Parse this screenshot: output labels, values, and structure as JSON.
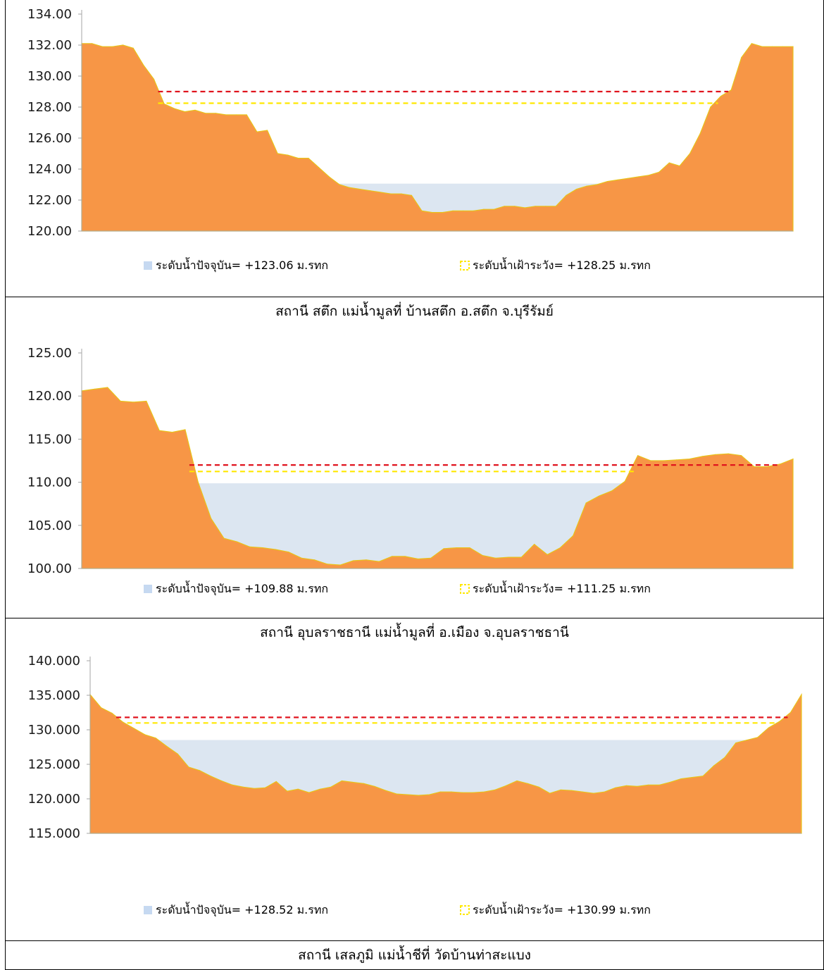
{
  "colors": {
    "terrain": "#F79646",
    "terrain_edge": "#E8C21A",
    "water": "#DCE6F1",
    "water_legend": "#C6D9F1",
    "warning_line": "#FFE800",
    "danger_line": "#E0141E",
    "axis": "#A6A6A6"
  },
  "chart_data": [
    {
      "type": "area",
      "station_caption": "สถานี สตึก แม่น้ำมูลที่ บ้านสตึก อ.สตึก จ.บุรีรัมย์",
      "ylim": [
        120,
        134
      ],
      "yticks": [
        "120.00",
        "122.00",
        "124.00",
        "126.00",
        "128.00",
        "130.00",
        "132.00",
        "134.00"
      ],
      "ytick_values": [
        120,
        122,
        124,
        126,
        128,
        130,
        132,
        134
      ],
      "series": [
        {
          "name": "",
          "values": [
            132.1,
            132.1,
            131.9,
            131.9,
            132.0,
            131.8,
            130.7,
            129.8,
            128.2,
            127.9,
            127.7,
            127.8,
            127.6,
            127.6,
            127.5,
            127.5,
            127.5,
            126.4,
            126.5,
            125.0,
            124.9,
            124.7,
            124.7,
            124.1,
            123.5,
            123.0,
            122.8,
            122.7,
            122.6,
            122.5,
            122.4,
            122.4,
            122.3,
            121.3,
            121.2,
            121.2,
            121.3,
            121.3,
            121.3,
            121.4,
            121.4,
            121.6,
            121.6,
            121.5,
            121.6,
            121.6,
            121.6,
            122.3,
            122.7,
            122.9,
            123.0,
            123.2,
            123.3,
            123.4,
            123.5,
            123.6,
            123.8,
            124.4,
            124.2,
            125.0,
            126.3,
            128.0,
            128.7,
            129.1,
            131.2,
            132.1,
            131.9,
            131.9,
            131.9,
            131.9
          ]
        }
      ],
      "current_level": 123.06,
      "warning_level": 128.25,
      "danger_level": 129.0,
      "legend": [
        {
          "label": "ระดับน้ำปัจจุบัน=  +123.06 ม.รทก",
          "kind": "water"
        },
        {
          "label": "ระดับน้ำเฝ้าระวัง=  +128.25 ม.รทก",
          "kind": "warning"
        }
      ]
    },
    {
      "type": "area",
      "station_caption": "สถานี อุบลราชธานี แม่น้ำมูลที่ อ.เมือง จ.อุบลราชธานี",
      "ylim": [
        100,
        125
      ],
      "yticks": [
        "100.00",
        "105.00",
        "110.00",
        "115.00",
        "120.00",
        "125.00"
      ],
      "ytick_values": [
        100,
        105,
        110,
        115,
        120,
        125
      ],
      "series": [
        {
          "name": "",
          "values": [
            120.6,
            120.8,
            121.0,
            119.4,
            119.3,
            119.4,
            116.0,
            115.8,
            116.1,
            110.0,
            105.8,
            103.5,
            103.1,
            102.5,
            102.4,
            102.2,
            101.9,
            101.2,
            101.0,
            100.5,
            100.4,
            100.9,
            101.0,
            100.8,
            101.4,
            101.4,
            101.1,
            101.2,
            102.3,
            102.4,
            102.4,
            101.5,
            101.2,
            101.3,
            101.3,
            102.8,
            101.6,
            102.4,
            103.8,
            107.6,
            108.4,
            109.0,
            110.1,
            113.1,
            112.5,
            112.5,
            112.6,
            112.7,
            113.0,
            113.2,
            113.3,
            113.1,
            111.8,
            111.8,
            112.1,
            112.7
          ]
        }
      ],
      "current_level": 109.88,
      "warning_level": 111.25,
      "danger_level": 112.0,
      "legend": [
        {
          "label": "ระดับน้ำปัจจุบัน=  +109.88 ม.รทก",
          "kind": "water"
        },
        {
          "label": "ระดับน้ำเฝ้าระวัง=  +111.25 ม.รทก",
          "kind": "warning"
        }
      ]
    },
    {
      "type": "area",
      "station_caption": "สถานี เสลภูมิ แม่น้ำชีที่ วัดบ้านท่าสะแบง",
      "ylim": [
        115,
        140
      ],
      "yticks": [
        "115.000",
        "120.000",
        "125.000",
        "130.000",
        "135.000",
        "140.000"
      ],
      "ytick_values": [
        115,
        120,
        125,
        130,
        135,
        140
      ],
      "series": [
        {
          "name": "",
          "values": [
            135.1,
            133.2,
            132.4,
            131.1,
            130.2,
            129.3,
            128.8,
            127.6,
            126.5,
            124.6,
            124.1,
            123.3,
            122.6,
            122.0,
            121.7,
            121.5,
            121.6,
            122.5,
            121.1,
            121.4,
            120.9,
            121.4,
            121.7,
            122.6,
            122.4,
            122.2,
            121.8,
            121.2,
            120.7,
            120.6,
            120.5,
            120.6,
            121.0,
            121.0,
            120.9,
            120.9,
            121.0,
            121.3,
            121.9,
            122.6,
            122.2,
            121.7,
            120.8,
            121.3,
            121.2,
            121.0,
            120.8,
            121.0,
            121.6,
            121.9,
            121.8,
            122.0,
            122.0,
            122.4,
            122.9,
            123.1,
            123.3,
            124.8,
            126.0,
            128.1,
            128.5,
            128.9,
            130.3,
            131.2,
            132.5,
            135.1
          ]
        }
      ],
      "current_level": 128.52,
      "warning_level": 130.99,
      "danger_level": 131.8,
      "legend": [
        {
          "label": "ระดับน้ำปัจจุบัน=  +128.52 ม.รทก",
          "kind": "water"
        },
        {
          "label": "ระดับน้ำเฝ้าระวัง=  +130.99 ม.รทก",
          "kind": "warning"
        }
      ]
    }
  ]
}
